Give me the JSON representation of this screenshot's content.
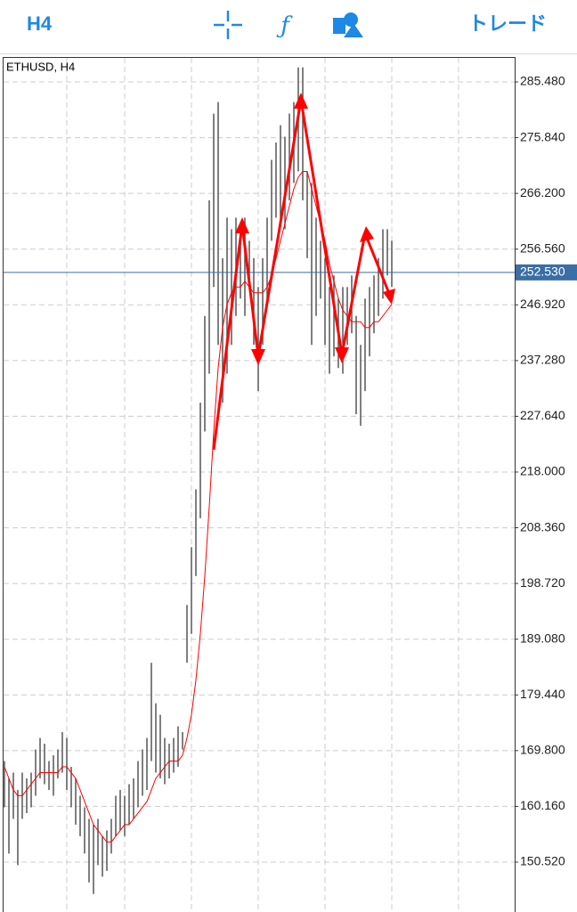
{
  "toolbar": {
    "timeframe": "H4",
    "trade": "トレード"
  },
  "chart_data": {
    "type": "bars",
    "title": "ETHUSD, H4",
    "ylim": [
      141.89,
      289.64
    ],
    "yticks": [
      {
        "value": 150.52,
        "label": "150.520"
      },
      {
        "value": 160.16,
        "label": "160.160"
      },
      {
        "value": 169.8,
        "label": "169.800"
      },
      {
        "value": 179.44,
        "label": "179.440"
      },
      {
        "value": 189.08,
        "label": "189.080"
      },
      {
        "value": 198.72,
        "label": "198.720"
      },
      {
        "value": 208.36,
        "label": "208.360"
      },
      {
        "value": 218,
        "label": "218.000"
      },
      {
        "value": 227.64,
        "label": "227.640"
      },
      {
        "value": 237.28,
        "label": "237.280"
      },
      {
        "value": 246.92,
        "label": "246.920"
      },
      {
        "value": 256.56,
        "label": "256.560"
      },
      {
        "value": 266.2,
        "label": "266.200"
      },
      {
        "value": 275.84,
        "label": "275.840"
      },
      {
        "value": 285.48,
        "label": "285.480"
      }
    ],
    "grid": true,
    "current_price": {
      "value": 252.53,
      "label": "252.530"
    },
    "bar_color": "#555555",
    "lows": [
      160,
      152,
      158,
      150,
      158,
      159,
      160,
      162,
      165,
      164,
      163,
      162,
      165,
      166,
      163,
      160,
      157,
      155,
      152,
      147,
      145,
      150,
      148,
      149,
      152,
      155,
      156,
      155,
      157,
      158,
      160,
      162,
      163,
      168,
      166,
      165,
      164,
      165,
      166,
      167,
      170,
      185,
      190,
      200,
      210,
      225,
      235,
      250,
      240,
      230,
      235,
      240,
      245,
      248,
      245,
      250,
      240,
      232,
      240,
      248,
      258,
      262,
      262,
      260,
      265,
      268,
      270,
      265,
      255,
      240,
      245,
      248,
      240,
      235,
      238,
      236,
      235,
      240,
      242,
      228,
      226,
      232,
      238,
      242,
      245,
      248,
      252,
      250
    ],
    "highs": [
      168,
      165,
      166,
      163,
      166,
      165,
      166,
      170,
      172,
      171,
      168,
      169,
      170,
      173,
      172,
      167,
      165,
      162,
      160,
      158,
      157,
      158,
      155,
      156,
      158,
      162,
      163,
      162,
      164,
      165,
      168,
      170,
      172,
      185,
      178,
      176,
      172,
      171,
      172,
      174,
      173,
      195,
      205,
      215,
      230,
      245,
      265,
      280,
      282,
      255,
      262,
      260,
      262,
      260,
      262,
      258,
      255,
      250,
      255,
      262,
      272,
      275,
      278,
      276,
      280,
      282,
      288,
      288,
      270,
      268,
      262,
      258,
      255,
      250,
      252,
      248,
      250,
      250,
      252,
      245,
      240,
      248,
      250,
      252,
      255,
      260,
      260,
      258
    ],
    "ma": {
      "color": "#ff0000",
      "values": [
        167,
        165,
        163,
        162,
        162,
        163,
        164,
        165,
        166,
        166,
        166,
        166,
        166,
        167,
        167,
        166,
        165,
        163,
        161,
        159,
        157,
        156,
        155,
        154,
        154,
        155,
        156,
        157,
        157,
        158,
        159,
        160,
        161,
        163,
        165,
        166,
        167,
        168,
        168,
        168,
        169,
        172,
        176,
        182,
        190,
        200,
        212,
        225,
        236,
        243,
        247,
        249,
        250,
        250,
        251,
        250,
        249,
        249,
        249,
        250,
        252,
        255,
        258,
        261,
        264,
        267,
        269,
        270,
        270,
        267,
        264,
        261,
        258,
        254,
        251,
        248,
        246,
        245,
        244,
        244,
        244,
        243,
        243,
        244,
        244,
        245,
        246,
        247
      ]
    }
  }
}
